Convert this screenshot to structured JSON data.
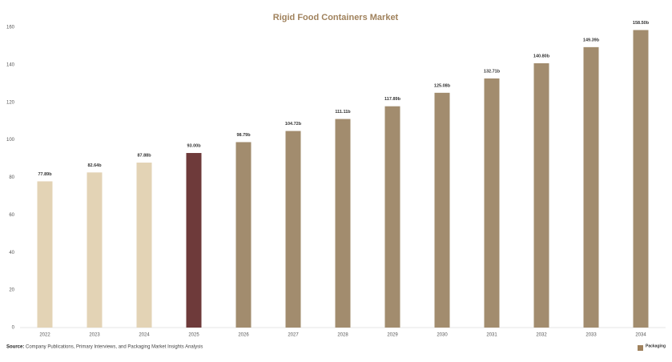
{
  "chart_data": {
    "type": "bar",
    "title": "Rigid Food Containers Market",
    "categories": [
      "2022",
      "2023",
      "2024",
      "2025",
      "2026",
      "2027",
      "2028",
      "2029",
      "2030",
      "2031",
      "2032",
      "2033",
      "2034"
    ],
    "values": [
      77.89,
      82.64,
      87.88,
      93.0,
      98.79,
      104.72,
      111.11,
      117.89,
      125.08,
      132.71,
      140.8,
      149.39,
      158.5
    ],
    "value_labels": [
      "77.89b",
      "82.64b",
      "87.88b",
      "93.00b",
      "98.79b",
      "104.72b",
      "111.11b",
      "117.89b",
      "125.08b",
      "132.71b",
      "140.80b",
      "149.39b",
      "158.50b"
    ],
    "colors": [
      "#e3d3b5",
      "#e3d3b5",
      "#e3d3b5",
      "#6e3a3a",
      "#a28c6e",
      "#a28c6e",
      "#a28c6e",
      "#a28c6e",
      "#a28c6e",
      "#a28c6e",
      "#a28c6e",
      "#a28c6e",
      "#a28c6e"
    ],
    "ylim": [
      0,
      160
    ],
    "yticks": [
      0,
      20,
      40,
      60,
      80,
      100,
      120,
      140,
      160
    ],
    "grid": false,
    "source_label": "Source:",
    "source": "Company Publications, Primary Interviews, and Packaging Market Insights Analysis",
    "logo_text": "Packaging"
  }
}
